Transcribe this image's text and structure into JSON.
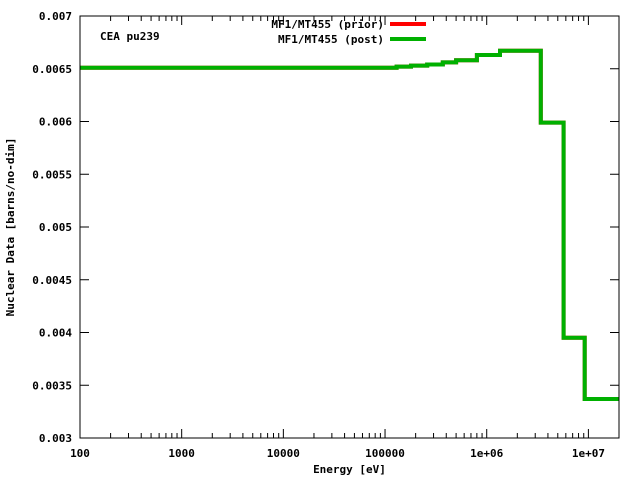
{
  "chart_data": {
    "type": "line",
    "step": true,
    "xscale": "log",
    "xlabel": "Energy [eV]",
    "ylabel": "Nuclear Data [barns/no-dim]",
    "xlim": [
      100,
      20000000
    ],
    "ylim": [
      0.003,
      0.007
    ],
    "x_ticks": [
      100,
      1000,
      10000,
      100000,
      1000000,
      10000000
    ],
    "x_tick_labels": [
      "100",
      "1000",
      "10000",
      "100000",
      "1e+06",
      "1e+07"
    ],
    "y_ticks": [
      0.003,
      0.0035,
      0.004,
      0.0045,
      0.005,
      0.0055,
      0.006,
      0.0065,
      0.007
    ],
    "y_tick_labels": [
      "0.003",
      "0.0035",
      "0.004",
      "0.0045",
      "0.005",
      "0.0055",
      "0.006",
      "0.0065",
      "0.007"
    ],
    "annotation": "CEA pu239",
    "legend_position": "top-center",
    "grid": false,
    "series": [
      {
        "name": "MF1/MT455 (prior)",
        "color": "#ff0000",
        "x": [
          100,
          100000,
          130000,
          180000,
          260000,
          370000,
          500000,
          800000,
          1350000,
          3400000,
          5700000,
          9200000,
          20000000
        ],
        "y": [
          0.00651,
          0.00651,
          0.00652,
          0.00653,
          0.00654,
          0.00656,
          0.00658,
          0.00663,
          0.00667,
          0.00599,
          0.00395,
          0.00337,
          0.00337
        ]
      },
      {
        "name": "MF1/MT455 (post)",
        "color": "#00b000",
        "x": [
          100,
          100000,
          130000,
          180000,
          260000,
          370000,
          500000,
          800000,
          1350000,
          3400000,
          5700000,
          9200000,
          20000000
        ],
        "y": [
          0.00651,
          0.00651,
          0.00652,
          0.00653,
          0.00654,
          0.00656,
          0.00658,
          0.00663,
          0.00667,
          0.00599,
          0.00395,
          0.00337,
          0.00337
        ]
      }
    ]
  }
}
